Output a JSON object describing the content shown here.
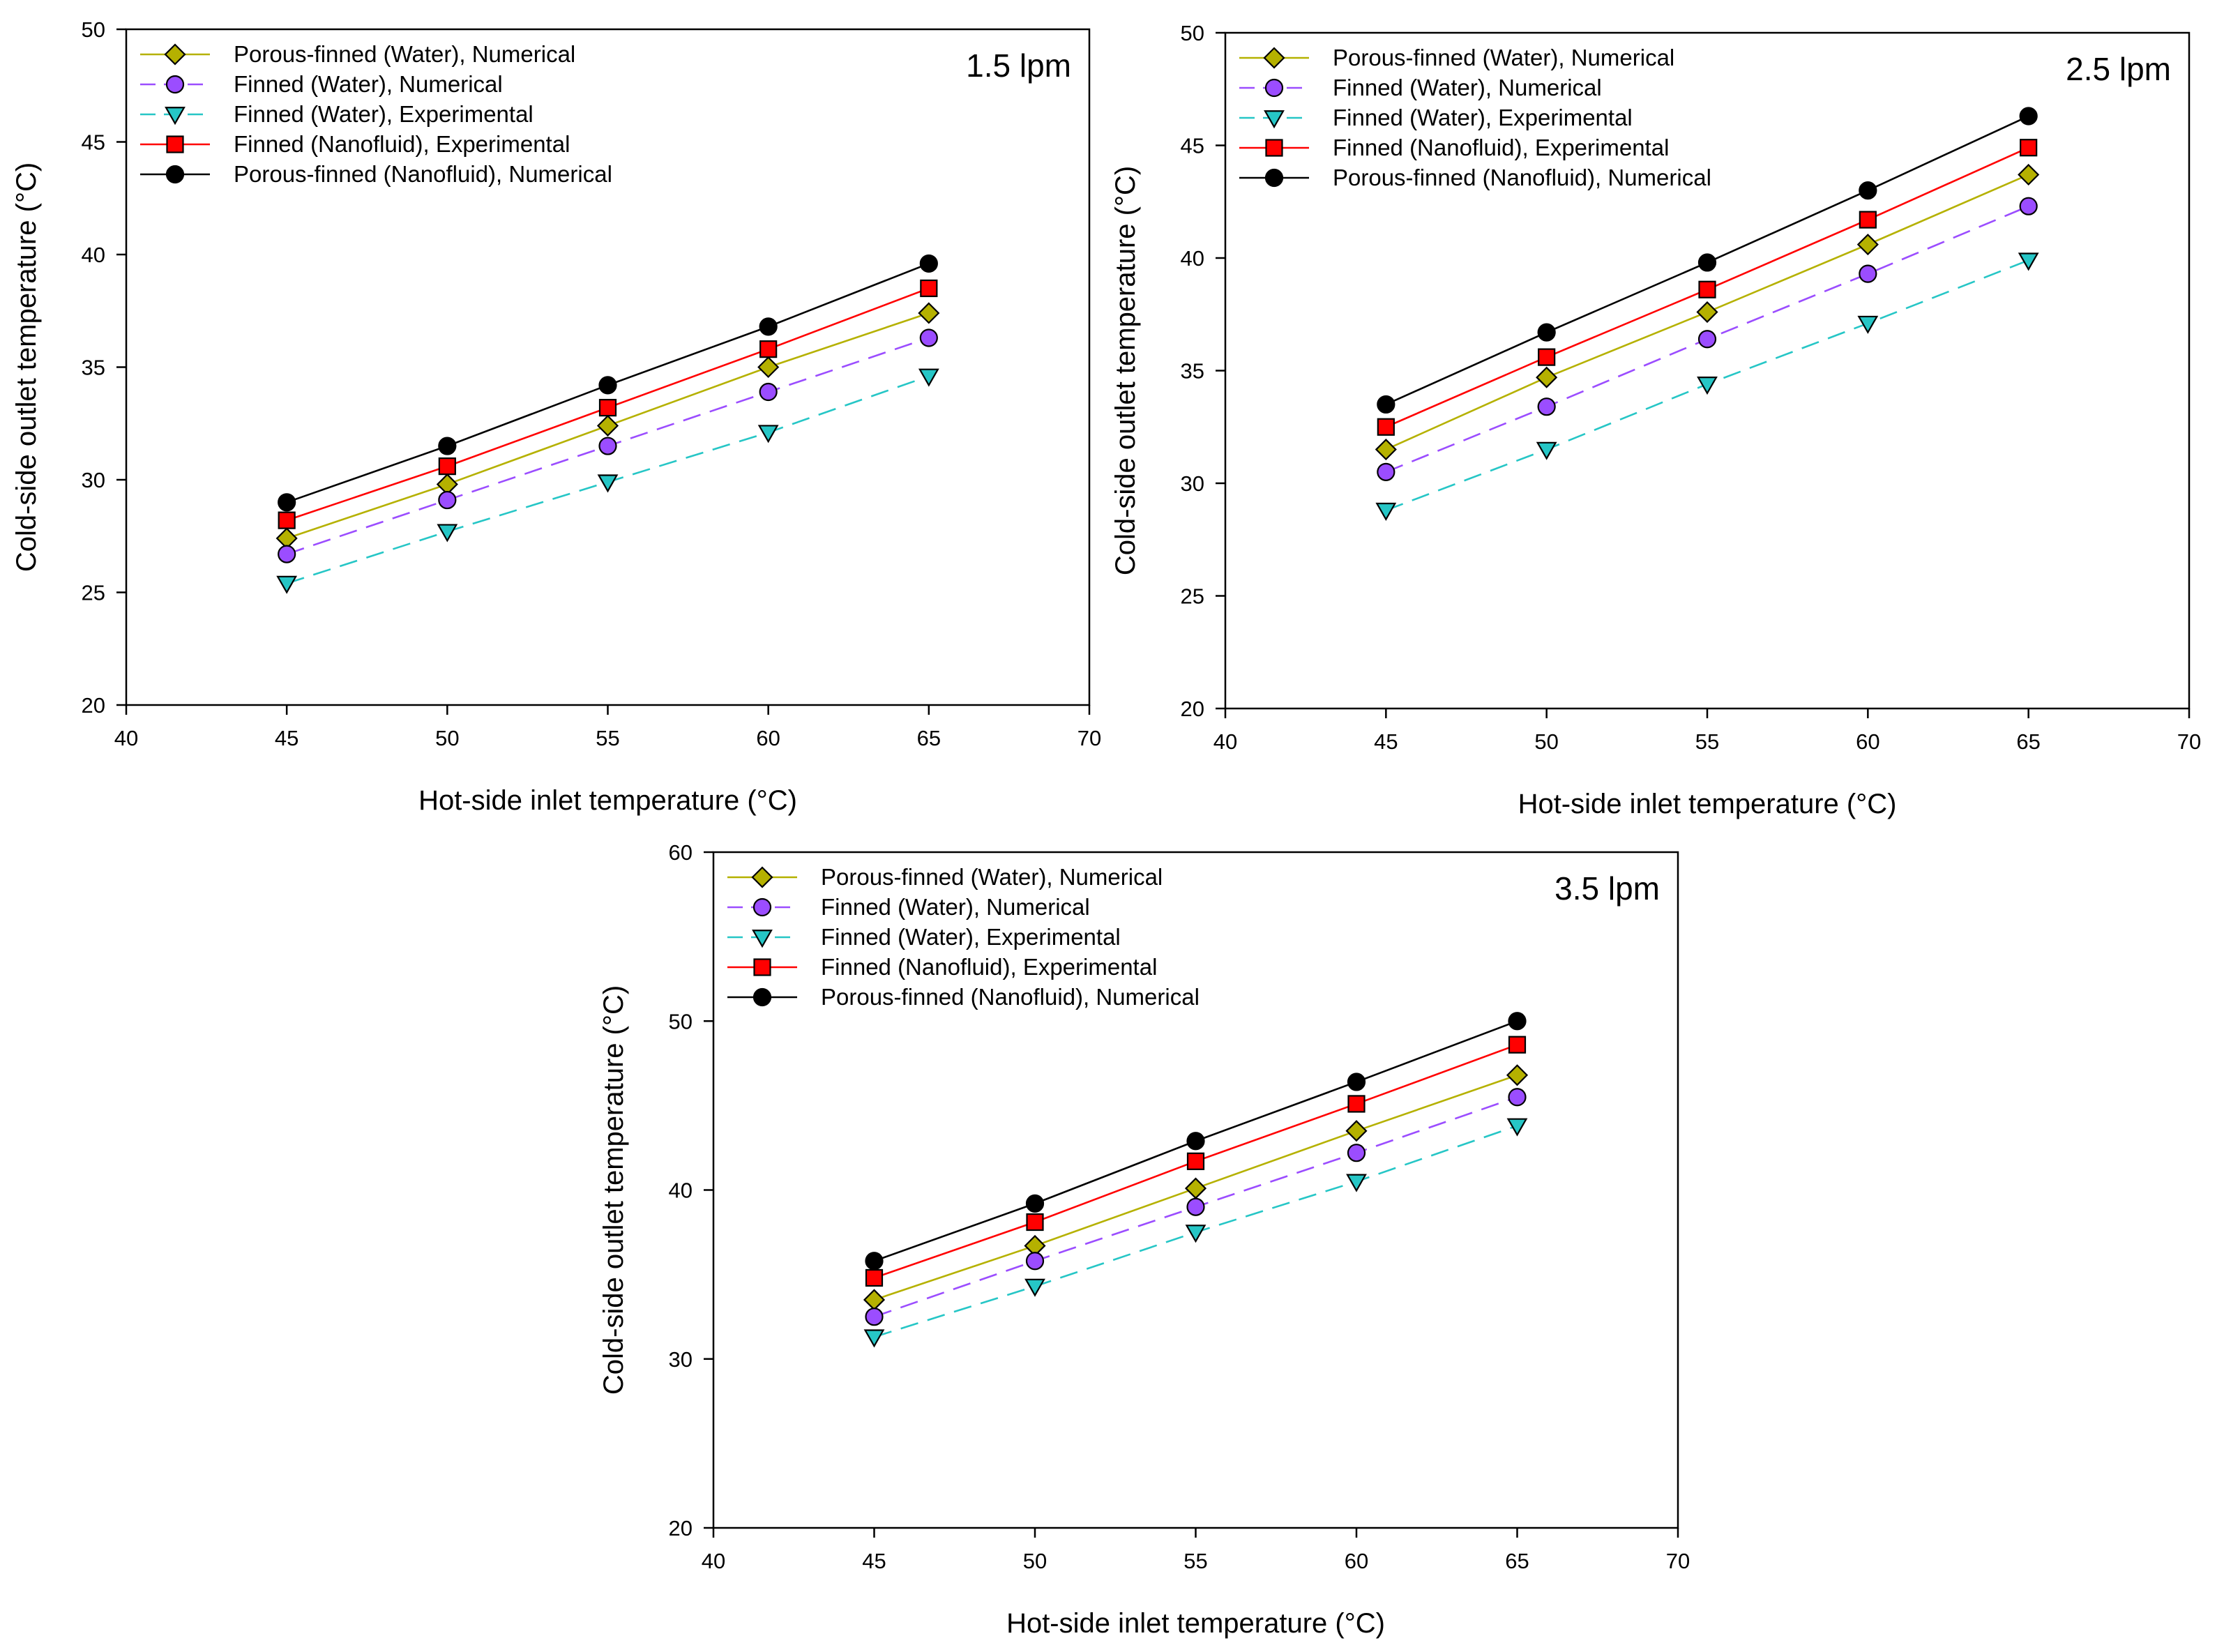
{
  "chart_data": [
    {
      "type": "line",
      "label": "1.5 lpm",
      "xlabel": "Hot-side inlet temperature (°C)",
      "ylabel": "Cold-side outlet temperature (°C)",
      "xlim": [
        40,
        70
      ],
      "ylim": [
        20,
        50
      ],
      "xticks": [
        40,
        45,
        50,
        55,
        60,
        65,
        70
      ],
      "yticks": [
        20,
        25,
        30,
        35,
        40,
        45,
        50
      ],
      "x": [
        45,
        50,
        55,
        60,
        65
      ],
      "legend_position": "top-left",
      "series": [
        {
          "name": "Porous-finned (Water), Numerical",
          "values": [
            27.4,
            29.8,
            32.4,
            35.0,
            37.4
          ],
          "color": "#b5b100",
          "marker_fill": "#b5b100",
          "marker": "diamond",
          "dash": "solid"
        },
        {
          "name": "Finned (Water), Numerical",
          "values": [
            26.7,
            29.1,
            31.5,
            33.9,
            36.3
          ],
          "color": "#9b4dff",
          "marker_fill": "#9b4dff",
          "marker": "circle",
          "dash": "dashed"
        },
        {
          "name": "Finned (Water), Experimental",
          "values": [
            25.4,
            27.7,
            29.9,
            32.1,
            34.6
          ],
          "color": "#26c6c6",
          "marker_fill": "#26c6c6",
          "marker": "triangle-down",
          "dash": "dashed"
        },
        {
          "name": "Finned (Nanofluid), Experimental",
          "values": [
            28.2,
            30.6,
            33.2,
            35.8,
            38.5
          ],
          "color": "#ff0000",
          "marker_fill": "#ff0000",
          "marker": "square",
          "dash": "solid"
        },
        {
          "name": "Porous-finned (Nanofluid), Numerical",
          "values": [
            29.0,
            31.5,
            34.2,
            36.8,
            39.6
          ],
          "color": "#000000",
          "marker_fill": "#000000",
          "marker": "circle",
          "dash": "solid"
        }
      ]
    },
    {
      "type": "line",
      "label": "2.5 lpm",
      "xlabel": "Hot-side inlet temperature (°C)",
      "ylabel": "Cold-side outlet temperature (°C)",
      "xlim": [
        40,
        70
      ],
      "ylim": [
        20,
        50
      ],
      "xticks": [
        40,
        45,
        50,
        55,
        60,
        65,
        70
      ],
      "yticks": [
        20,
        25,
        30,
        35,
        40,
        45,
        50
      ],
      "x": [
        45,
        50,
        55,
        60,
        65
      ],
      "legend_position": "top-left",
      "series": [
        {
          "name": "Porous-finned (Water), Numerical",
          "values": [
            31.5,
            34.7,
            37.6,
            40.6,
            43.7
          ],
          "color": "#b5b100",
          "marker_fill": "#b5b100",
          "marker": "diamond",
          "dash": "solid"
        },
        {
          "name": "Finned (Water), Numerical",
          "values": [
            30.5,
            33.4,
            36.4,
            39.3,
            42.3
          ],
          "color": "#9b4dff",
          "marker_fill": "#9b4dff",
          "marker": "circle",
          "dash": "dashed"
        },
        {
          "name": "Finned (Water), Experimental",
          "values": [
            28.8,
            31.5,
            34.4,
            37.1,
            39.9
          ],
          "color": "#26c6c6",
          "marker_fill": "#26c6c6",
          "marker": "triangle-down",
          "dash": "dashed"
        },
        {
          "name": "Finned (Nanofluid), Experimental",
          "values": [
            32.5,
            35.6,
            38.6,
            41.7,
            44.9
          ],
          "color": "#ff0000",
          "marker_fill": "#ff0000",
          "marker": "square",
          "dash": "solid"
        },
        {
          "name": "Porous-finned (Nanofluid), Numerical",
          "values": [
            33.5,
            36.7,
            39.8,
            43.0,
            46.3
          ],
          "color": "#000000",
          "marker_fill": "#000000",
          "marker": "circle",
          "dash": "solid"
        }
      ]
    },
    {
      "type": "line",
      "label": "3.5 lpm",
      "xlabel": "Hot-side inlet temperature (°C)",
      "ylabel": "Cold-side outlet temperature (°C)",
      "xlim": [
        40,
        70
      ],
      "ylim": [
        20,
        60
      ],
      "xticks": [
        40,
        45,
        50,
        55,
        60,
        65,
        70
      ],
      "yticks": [
        20,
        30,
        40,
        50,
        60
      ],
      "x": [
        45,
        50,
        55,
        60,
        65
      ],
      "legend_position": "top-left",
      "series": [
        {
          "name": "Porous-finned (Water), Numerical",
          "values": [
            33.5,
            36.7,
            40.1,
            43.5,
            46.8
          ],
          "color": "#b5b100",
          "marker_fill": "#b5b100",
          "marker": "diamond",
          "dash": "solid"
        },
        {
          "name": "Finned (Water), Numerical",
          "values": [
            32.5,
            35.8,
            39.0,
            42.2,
            45.5
          ],
          "color": "#9b4dff",
          "marker_fill": "#9b4dff",
          "marker": "circle",
          "dash": "dashed"
        },
        {
          "name": "Finned (Water), Experimental",
          "values": [
            31.3,
            34.3,
            37.5,
            40.5,
            43.8
          ],
          "color": "#26c6c6",
          "marker_fill": "#26c6c6",
          "marker": "triangle-down",
          "dash": "dashed"
        },
        {
          "name": "Finned (Nanofluid), Experimental",
          "values": [
            34.8,
            38.1,
            41.7,
            45.1,
            48.6
          ],
          "color": "#ff0000",
          "marker_fill": "#ff0000",
          "marker": "square",
          "dash": "solid"
        },
        {
          "name": "Porous-finned (Nanofluid), Numerical",
          "values": [
            35.8,
            39.2,
            42.9,
            46.4,
            50.0
          ],
          "color": "#000000",
          "marker_fill": "#000000",
          "marker": "circle",
          "dash": "solid"
        }
      ]
    }
  ]
}
